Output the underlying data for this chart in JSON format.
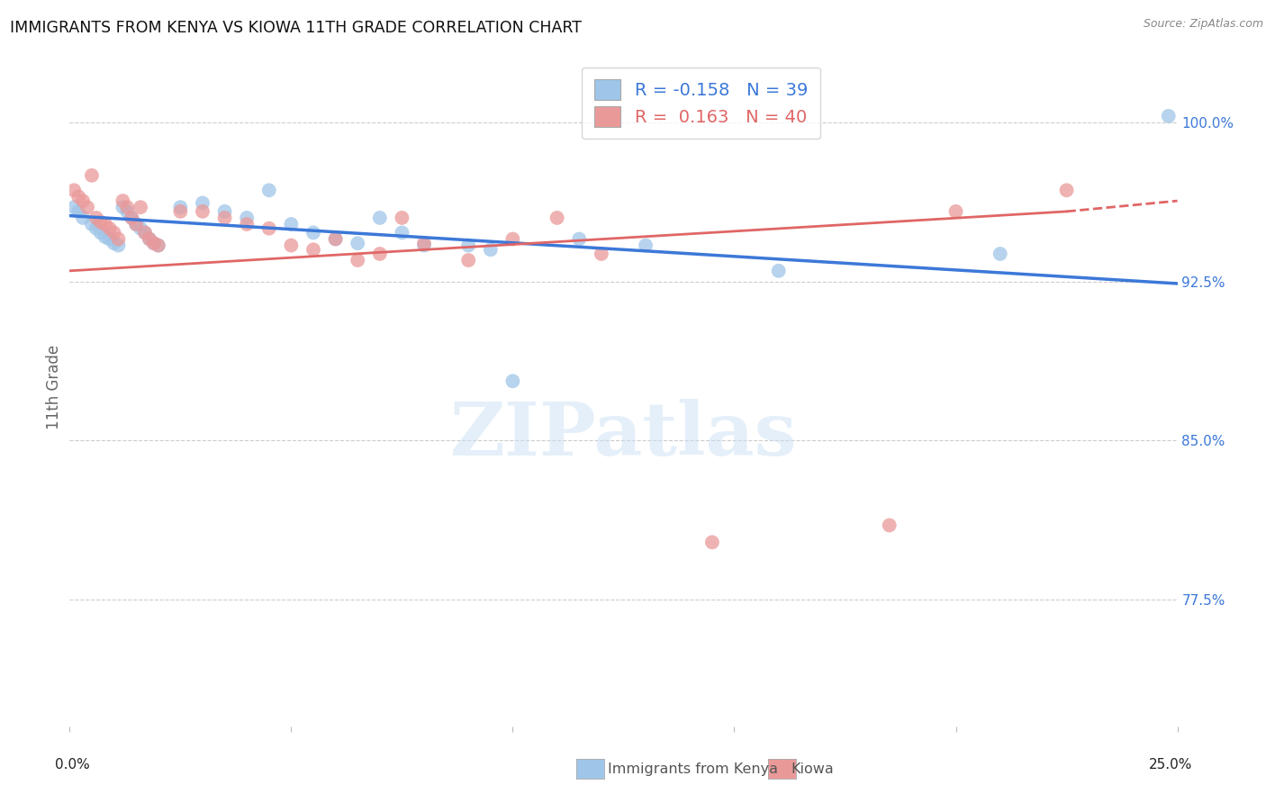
{
  "title": "IMMIGRANTS FROM KENYA VS KIOWA 11TH GRADE CORRELATION CHART",
  "source": "Source: ZipAtlas.com",
  "ylabel": "11th Grade",
  "ytick_labels": [
    "77.5%",
    "85.0%",
    "92.5%",
    "100.0%"
  ],
  "ytick_values": [
    0.775,
    0.85,
    0.925,
    1.0
  ],
  "xlim": [
    0.0,
    0.25
  ],
  "ylim": [
    0.715,
    1.035
  ],
  "legend_r_blue": "-0.158",
  "legend_n_blue": "39",
  "legend_r_pink": " 0.163",
  "legend_n_pink": "40",
  "legend_label_blue": "Immigrants from Kenya",
  "legend_label_pink": "Kiowa",
  "blue_color": "#9fc5e8",
  "pink_color": "#ea9999",
  "blue_line_color": "#3c78d8",
  "pink_line_color": "#e06666",
  "blue_scatter": [
    [
      0.001,
      0.96
    ],
    [
      0.002,
      0.958
    ],
    [
      0.003,
      0.955
    ],
    [
      0.005,
      0.952
    ],
    [
      0.006,
      0.95
    ],
    [
      0.007,
      0.948
    ],
    [
      0.008,
      0.946
    ],
    [
      0.009,
      0.945
    ],
    [
      0.01,
      0.943
    ],
    [
      0.011,
      0.942
    ],
    [
      0.012,
      0.96
    ],
    [
      0.013,
      0.958
    ],
    [
      0.014,
      0.955
    ],
    [
      0.015,
      0.952
    ],
    [
      0.016,
      0.95
    ],
    [
      0.017,
      0.948
    ],
    [
      0.018,
      0.945
    ],
    [
      0.019,
      0.943
    ],
    [
      0.02,
      0.942
    ],
    [
      0.025,
      0.96
    ],
    [
      0.03,
      0.962
    ],
    [
      0.035,
      0.958
    ],
    [
      0.04,
      0.955
    ],
    [
      0.045,
      0.968
    ],
    [
      0.05,
      0.952
    ],
    [
      0.055,
      0.948
    ],
    [
      0.06,
      0.945
    ],
    [
      0.065,
      0.943
    ],
    [
      0.07,
      0.955
    ],
    [
      0.075,
      0.948
    ],
    [
      0.08,
      0.942
    ],
    [
      0.09,
      0.942
    ],
    [
      0.095,
      0.94
    ],
    [
      0.1,
      0.878
    ],
    [
      0.115,
      0.945
    ],
    [
      0.13,
      0.942
    ],
    [
      0.16,
      0.93
    ],
    [
      0.21,
      0.938
    ],
    [
      0.248,
      1.003
    ]
  ],
  "pink_scatter": [
    [
      0.001,
      0.968
    ],
    [
      0.002,
      0.965
    ],
    [
      0.003,
      0.963
    ],
    [
      0.004,
      0.96
    ],
    [
      0.005,
      0.975
    ],
    [
      0.006,
      0.955
    ],
    [
      0.007,
      0.953
    ],
    [
      0.008,
      0.952
    ],
    [
      0.009,
      0.95
    ],
    [
      0.01,
      0.948
    ],
    [
      0.011,
      0.945
    ],
    [
      0.012,
      0.963
    ],
    [
      0.013,
      0.96
    ],
    [
      0.014,
      0.955
    ],
    [
      0.015,
      0.952
    ],
    [
      0.016,
      0.96
    ],
    [
      0.017,
      0.948
    ],
    [
      0.018,
      0.945
    ],
    [
      0.019,
      0.943
    ],
    [
      0.02,
      0.942
    ],
    [
      0.025,
      0.958
    ],
    [
      0.03,
      0.958
    ],
    [
      0.035,
      0.955
    ],
    [
      0.04,
      0.952
    ],
    [
      0.045,
      0.95
    ],
    [
      0.05,
      0.942
    ],
    [
      0.055,
      0.94
    ],
    [
      0.06,
      0.945
    ],
    [
      0.065,
      0.935
    ],
    [
      0.07,
      0.938
    ],
    [
      0.075,
      0.955
    ],
    [
      0.08,
      0.943
    ],
    [
      0.09,
      0.935
    ],
    [
      0.1,
      0.945
    ],
    [
      0.11,
      0.955
    ],
    [
      0.12,
      0.938
    ],
    [
      0.145,
      0.802
    ],
    [
      0.185,
      0.81
    ],
    [
      0.2,
      0.958
    ],
    [
      0.225,
      0.968
    ]
  ],
  "background_color": "#ffffff",
  "grid_color": "#cccccc"
}
